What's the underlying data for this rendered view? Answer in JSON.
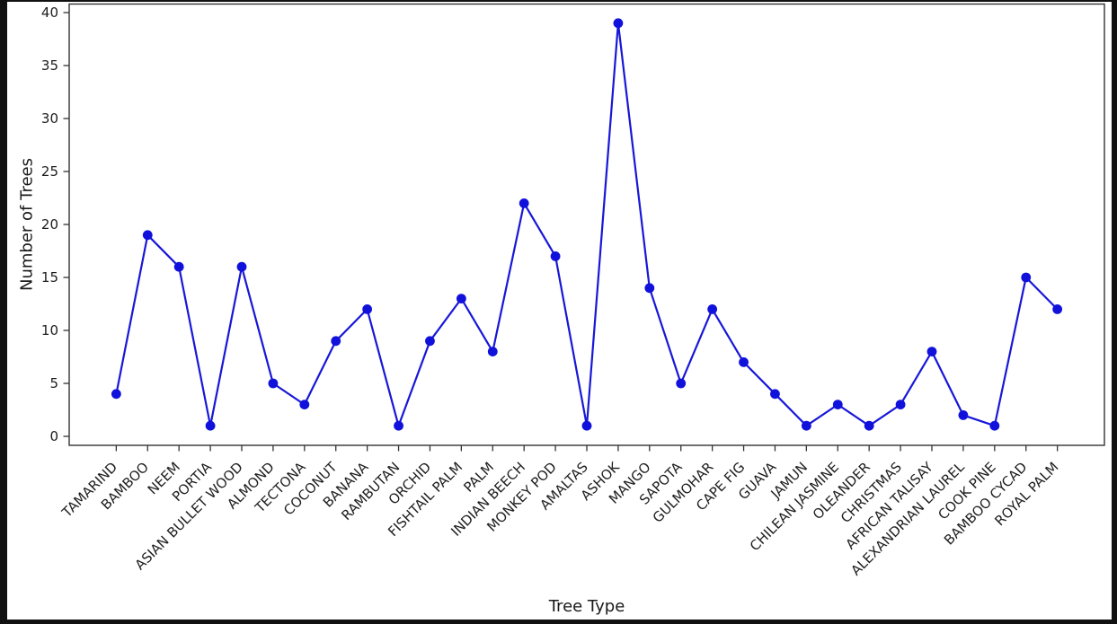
{
  "chart_data": {
    "type": "line",
    "title": "",
    "xlabel": "Tree Type",
    "ylabel": "Number of Trees",
    "categories": [
      "TAMARIND",
      "BAMBOO",
      "NEEM",
      "PORTIA",
      "ASIAN BULLET WOOD",
      "ALMOND",
      "TECTONA",
      "COCONUT",
      "BANANA",
      "RAMBUTAN",
      "ORCHID",
      "FISHTAIL PALM",
      "PALM",
      "INDIAN BEECH",
      "MONKEY POD",
      "AMALTAS",
      "ASHOK",
      "MANGO",
      "SAPOTA",
      "GULMOHAR",
      "CAPE FIG",
      "GUAVA",
      "JAMUN",
      "CHILEAN JASMINE",
      "OLEANDER",
      "CHRISTMAS",
      "AFRICAN TALISAY",
      "ALEXANDRIAN LAUREL",
      "COOK PINE",
      "BAMBOO CYCAD",
      "ROYAL PALM"
    ],
    "values": [
      4,
      19,
      16,
      1,
      16,
      5,
      3,
      9,
      12,
      1,
      9,
      13,
      8,
      22,
      17,
      1,
      39,
      14,
      5,
      12,
      7,
      4,
      1,
      3,
      1,
      3,
      8,
      2,
      1,
      15,
      12
    ],
    "yticks": [
      0,
      5,
      10,
      15,
      20,
      25,
      30,
      35,
      40
    ],
    "ylim": [
      -0.85,
      40.85
    ],
    "xtick_rotation_deg": 45,
    "grid": false,
    "legend": "none",
    "line_color": "#1717d8",
    "marker_color": "#1111dc",
    "marker_shape": "circle",
    "axis_color": "#333333",
    "tick_text_color": "#1d1d1d",
    "figure_background": "#ffffff",
    "window_border_color": "#111111"
  }
}
